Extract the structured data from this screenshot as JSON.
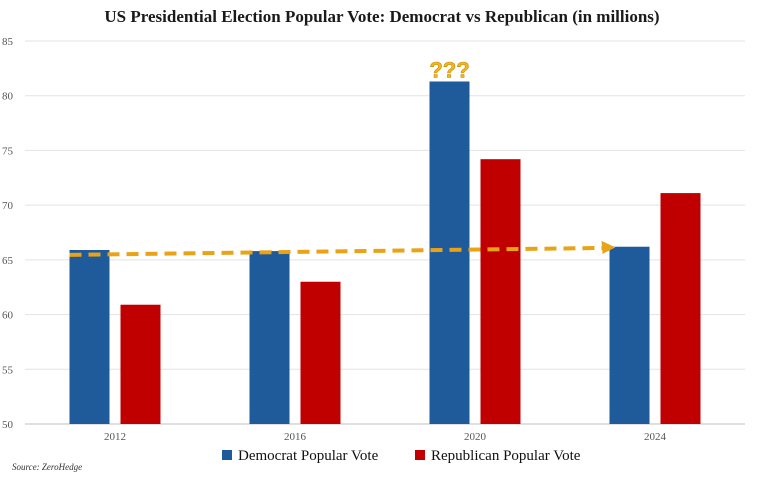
{
  "chart_data": {
    "type": "bar",
    "title": "US Presidential Election Popular Vote: Democrat vs Republican (in millions)",
    "categories": [
      "2012",
      "2016",
      "2020",
      "2024"
    ],
    "series": [
      {
        "name": "Democrat Popular Vote",
        "values": [
          65.9,
          65.8,
          81.3,
          66.2
        ],
        "color": "#1f5a9a"
      },
      {
        "name": "Republican Popular Vote",
        "values": [
          60.9,
          63.0,
          74.2,
          71.1
        ],
        "color": "#c00000"
      }
    ],
    "ylim": [
      50,
      85
    ],
    "yticks": [
      50,
      55,
      60,
      65,
      70,
      75,
      80,
      85
    ],
    "grid": true,
    "legend_position": "bottom",
    "annotations": [
      {
        "text": "???",
        "category": "2020",
        "series": "Democrat Popular Vote"
      }
    ],
    "trend_arrow": {
      "from_category": "2012",
      "to_category": "2024",
      "value": 66.0,
      "color": "#e8a317",
      "style": "dashed"
    },
    "source": "Source: ZeroHedge"
  }
}
